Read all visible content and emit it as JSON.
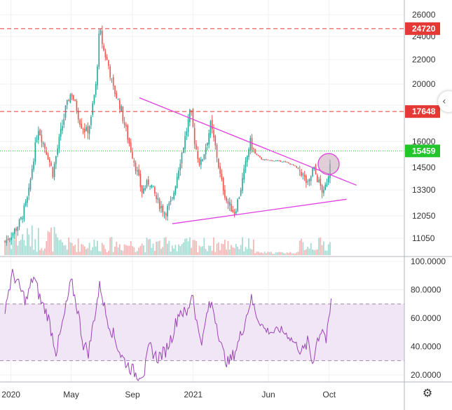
{
  "chart_data": [
    {
      "type": "candlestick",
      "title": "",
      "ylim": [
        10500,
        26800
      ],
      "y_ticks": [
        "26000",
        "24000",
        "22000",
        "20000",
        "17648",
        "16000",
        "14500",
        "13300",
        "12050",
        "11050"
      ],
      "y_tick_values": [
        26000,
        24000,
        22000,
        20000,
        17648,
        16000,
        14500,
        13300,
        12050,
        11050
      ],
      "hidden_tick": "18000",
      "price_tags": [
        {
          "label": "24720",
          "value": 24720,
          "color": "#e53935",
          "line_style": "dashed"
        },
        {
          "label": "17648",
          "value": 17648,
          "color": "#e53935",
          "line_style": "dashed"
        },
        {
          "label": "15459",
          "value": 15459,
          "color": "#22c52b",
          "line_style": "dotted"
        }
      ],
      "trendlines": [
        {
          "name": "upper",
          "from": {
            "date": "2020-09-15",
            "price": 18700
          },
          "to": {
            "date": "2021-11-25",
            "price": 13550
          },
          "color": "#e040e0"
        },
        {
          "name": "lower",
          "from": {
            "date": "2020-11-20",
            "price": 11700
          },
          "to": {
            "date": "2021-11-05",
            "price": 12850
          },
          "color": "#e040e0"
        }
      ],
      "highlight_circle": {
        "date": "2021-09-30",
        "price": 14700,
        "color": "#c8a8b8"
      },
      "price_path": [
        [
          "2019-12-20",
          10900
        ],
        [
          "2020-01-05",
          11300
        ],
        [
          "2020-01-20",
          11800
        ],
        [
          "2020-02-05",
          13000
        ],
        [
          "2020-02-15",
          15000
        ],
        [
          "2020-02-25",
          16800
        ],
        [
          "2020-03-05",
          16000
        ],
        [
          "2020-03-15",
          15200
        ],
        [
          "2020-03-25",
          14200
        ],
        [
          "2020-04-05",
          15800
        ],
        [
          "2020-04-20",
          17800
        ],
        [
          "2020-05-01",
          19200
        ],
        [
          "2020-05-10",
          18000
        ],
        [
          "2020-05-20",
          17000
        ],
        [
          "2020-06-01",
          16500
        ],
        [
          "2020-06-10",
          17200
        ],
        [
          "2020-06-20",
          20000
        ],
        [
          "2020-06-27",
          24720
        ],
        [
          "2020-07-05",
          22800
        ],
        [
          "2020-07-15",
          21500
        ],
        [
          "2020-07-25",
          19500
        ],
        [
          "2020-08-05",
          18200
        ],
        [
          "2020-08-20",
          16500
        ],
        [
          "2020-09-05",
          14800
        ],
        [
          "2020-09-20",
          13200
        ],
        [
          "2020-10-05",
          13800
        ],
        [
          "2020-10-20",
          12800
        ],
        [
          "2020-11-05",
          12200
        ],
        [
          "2020-11-20",
          12800
        ],
        [
          "2020-12-05",
          14800
        ],
        [
          "2020-12-20",
          16800
        ],
        [
          "2020-12-27",
          17700
        ],
        [
          "2021-01-05",
          15800
        ],
        [
          "2021-01-15",
          14600
        ],
        [
          "2021-01-25",
          15600
        ],
        [
          "2021-02-05",
          16900
        ],
        [
          "2021-02-15",
          15600
        ],
        [
          "2021-02-25",
          13900
        ],
        [
          "2021-03-10",
          12700
        ],
        [
          "2021-03-25",
          12200
        ],
        [
          "2021-04-05",
          13200
        ],
        [
          "2021-04-15",
          14500
        ],
        [
          "2021-04-25",
          16000
        ],
        [
          "2021-05-05",
          15300
        ],
        [
          "2021-05-20",
          14950
        ],
        [
          "2021-06-10",
          14900
        ],
        [
          "2021-07-01",
          14850
        ],
        [
          "2021-07-20",
          14650
        ],
        [
          "2021-08-05",
          14300
        ],
        [
          "2021-08-20",
          13500
        ],
        [
          "2021-08-30",
          14500
        ],
        [
          "2021-09-10",
          13700
        ],
        [
          "2021-09-20",
          13100
        ],
        [
          "2021-09-30",
          14200
        ],
        [
          "2021-10-05",
          15459
        ]
      ],
      "volume_hint": "volume bars along bottom of price panel"
    },
    {
      "type": "line",
      "title": "",
      "ylim": [
        15,
        103
      ],
      "y_ticks": [
        "100.0000",
        "80.0000",
        "60.0000",
        "40.0000",
        "20.0000"
      ],
      "y_tick_values": [
        100,
        80,
        60,
        40,
        20
      ],
      "bands": {
        "upper": 70,
        "lower": 30,
        "fill": "#f1e6f5",
        "line": "#9c8aa4"
      },
      "series": [
        {
          "color": "#9b43b6",
          "points": [
            [
              "2019-12-20",
              68
            ],
            [
              "2020-01-05",
              92
            ],
            [
              "2020-01-20",
              80
            ],
            [
              "2020-02-01",
              72
            ],
            [
              "2020-02-15",
              90
            ],
            [
              "2020-03-01",
              72
            ],
            [
              "2020-03-15",
              62
            ],
            [
              "2020-04-01",
              36
            ],
            [
              "2020-04-15",
              58
            ],
            [
              "2020-05-01",
              86
            ],
            [
              "2020-05-15",
              64
            ],
            [
              "2020-05-25",
              42
            ],
            [
              "2020-06-05",
              36
            ],
            [
              "2020-06-15",
              58
            ],
            [
              "2020-06-28",
              84
            ],
            [
              "2020-07-10",
              62
            ],
            [
              "2020-07-25",
              48
            ],
            [
              "2020-08-10",
              33
            ],
            [
              "2020-08-25",
              26
            ],
            [
              "2020-09-10",
              20
            ],
            [
              "2020-09-25",
              22
            ],
            [
              "2020-10-05",
              40
            ],
            [
              "2020-10-20",
              32
            ],
            [
              "2020-11-05",
              36
            ],
            [
              "2020-11-20",
              48
            ],
            [
              "2020-12-05",
              66
            ],
            [
              "2020-12-20",
              62
            ],
            [
              "2020-12-30",
              80
            ],
            [
              "2021-01-10",
              52
            ],
            [
              "2021-01-20",
              44
            ],
            [
              "2021-01-30",
              66
            ],
            [
              "2021-02-08",
              70
            ],
            [
              "2021-02-20",
              52
            ],
            [
              "2021-03-01",
              36
            ],
            [
              "2021-03-12",
              28
            ],
            [
              "2021-03-20",
              32
            ],
            [
              "2021-04-01",
              42
            ],
            [
              "2021-04-15",
              58
            ],
            [
              "2021-04-27",
              74
            ],
            [
              "2021-05-10",
              60
            ],
            [
              "2021-05-25",
              52
            ],
            [
              "2021-06-10",
              50
            ],
            [
              "2021-06-25",
              52
            ],
            [
              "2021-07-10",
              48
            ],
            [
              "2021-07-25",
              42
            ],
            [
              "2021-08-10",
              36
            ],
            [
              "2021-08-20",
              44
            ],
            [
              "2021-08-28",
              28
            ],
            [
              "2021-09-08",
              46
            ],
            [
              "2021-09-18",
              54
            ],
            [
              "2021-09-25",
              44
            ],
            [
              "2021-10-01",
              58
            ],
            [
              "2021-10-05",
              73
            ]
          ]
        }
      ]
    }
  ],
  "x_axis": {
    "ticks": [
      {
        "label": "2020",
        "date": "2020-01-01"
      },
      {
        "label": "May",
        "date": "2020-05-01"
      },
      {
        "label": "Sep",
        "date": "2020-09-01"
      },
      {
        "label": "2021",
        "date": "2021-01-01"
      },
      {
        "label": "Jun",
        "date": "2021-06-01"
      },
      {
        "label": "Oct",
        "date": "2021-10-01"
      }
    ],
    "range": [
      "2019-12-10",
      "2022-03-01"
    ]
  },
  "colors": {
    "up": "#26a69a",
    "down": "#ef5350",
    "grid": "#eef0f3",
    "axis": "#b2b5be"
  },
  "ui": {
    "collapse_icon": "chevron-left-icon",
    "settings_icon": "gear-icon"
  }
}
